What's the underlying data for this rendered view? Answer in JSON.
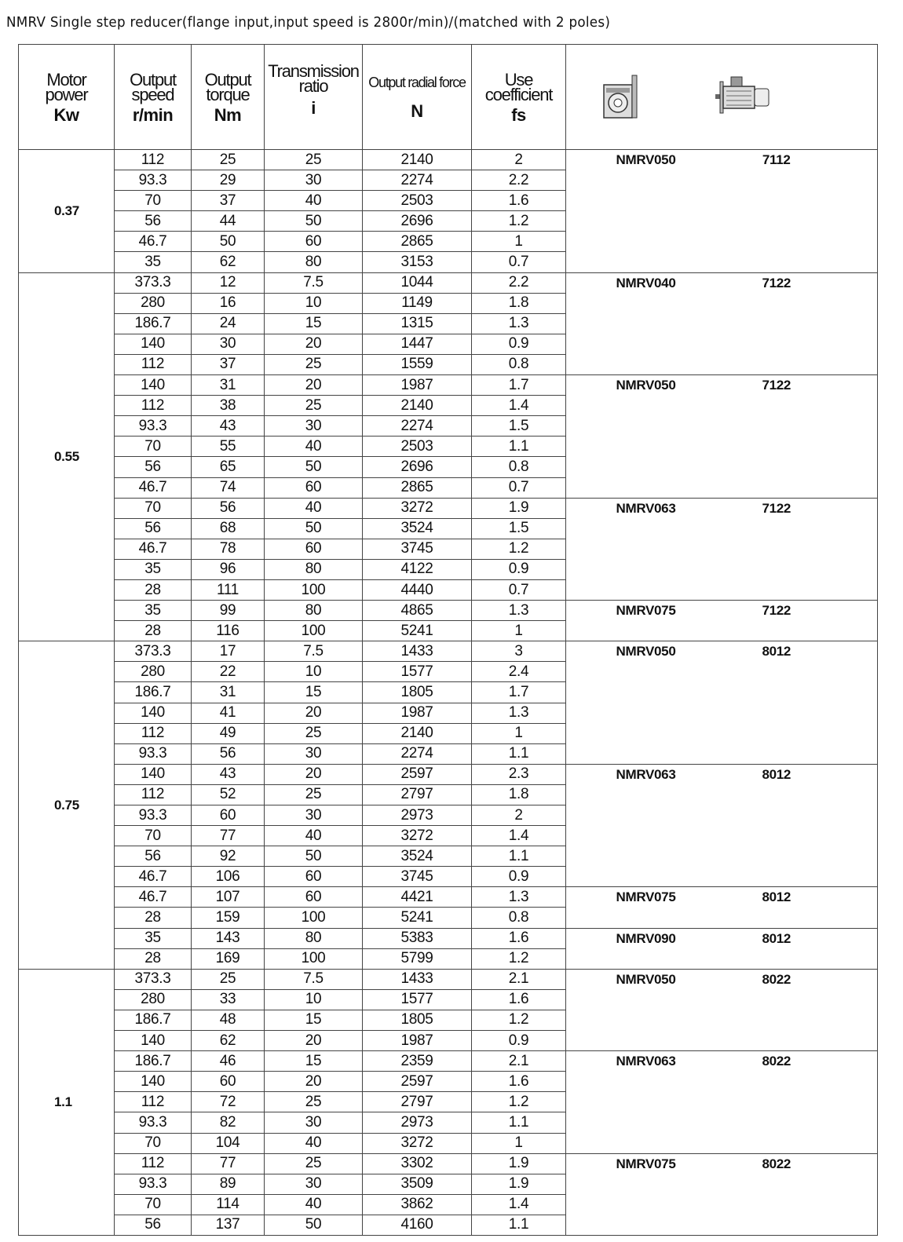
{
  "title": "NMRV Single step reducer(flange input,input speed is 2800r/min)/(matched with 2 poles)",
  "headers": {
    "power": [
      "Motor",
      "power"
    ],
    "power_unit": "Kw",
    "speed": [
      "Output",
      "speed"
    ],
    "speed_unit": "r/min",
    "torque": [
      "Output",
      "torque"
    ],
    "torque_unit": "Nm",
    "ratio": [
      "Transmission",
      "ratio"
    ],
    "ratio_unit": "i",
    "force": [
      "Output radial force"
    ],
    "force_unit": "N",
    "fs": [
      "Use",
      "coefficient"
    ],
    "fs_unit": "fs",
    "icons": [
      "worm-gear-reducer-icon",
      "electric-motor-icon"
    ]
  },
  "groups": [
    {
      "power": "0.37",
      "subgroups": [
        {
          "model": "NMRV050",
          "motor": "7112",
          "rows": [
            [
              "112",
              "25",
              "25",
              "2140",
              "2"
            ],
            [
              "93.3",
              "29",
              "30",
              "2274",
              "2.2"
            ],
            [
              "70",
              "37",
              "40",
              "2503",
              "1.6"
            ],
            [
              "56",
              "44",
              "50",
              "2696",
              "1.2"
            ],
            [
              "46.7",
              "50",
              "60",
              "2865",
              "1"
            ],
            [
              "35",
              "62",
              "80",
              "3153",
              "0.7"
            ]
          ]
        }
      ]
    },
    {
      "power": "0.55",
      "subgroups": [
        {
          "model": "NMRV040",
          "motor": "7122",
          "rows": [
            [
              "373.3",
              "12",
              "7.5",
              "1044",
              "2.2"
            ],
            [
              "280",
              "16",
              "10",
              "1149",
              "1.8"
            ],
            [
              "186.7",
              "24",
              "15",
              "1315",
              "1.3"
            ],
            [
              "140",
              "30",
              "20",
              "1447",
              "0.9"
            ],
            [
              "112",
              "37",
              "25",
              "1559",
              "0.8"
            ]
          ]
        },
        {
          "model": "NMRV050",
          "motor": "7122",
          "rows": [
            [
              "140",
              "31",
              "20",
              "1987",
              "1.7"
            ],
            [
              "112",
              "38",
              "25",
              "2140",
              "1.4"
            ],
            [
              "93.3",
              "43",
              "30",
              "2274",
              "1.5"
            ],
            [
              "70",
              "55",
              "40",
              "2503",
              "1.1"
            ],
            [
              "56",
              "65",
              "50",
              "2696",
              "0.8"
            ],
            [
              "46.7",
              "74",
              "60",
              "2865",
              "0.7"
            ]
          ]
        },
        {
          "model": "NMRV063",
          "motor": "7122",
          "rows": [
            [
              "70",
              "56",
              "40",
              "3272",
              "1.9"
            ],
            [
              "56",
              "68",
              "50",
              "3524",
              "1.5"
            ],
            [
              "46.7",
              "78",
              "60",
              "3745",
              "1.2"
            ],
            [
              "35",
              "96",
              "80",
              "4122",
              "0.9"
            ],
            [
              "28",
              "111",
              "100",
              "4440",
              "0.7"
            ]
          ]
        },
        {
          "model": "NMRV075",
          "motor": "7122",
          "rows": [
            [
              "35",
              "99",
              "80",
              "4865",
              "1.3"
            ],
            [
              "28",
              "116",
              "100",
              "5241",
              "1"
            ]
          ]
        }
      ]
    },
    {
      "power": "0.75",
      "subgroups": [
        {
          "model": "NMRV050",
          "motor": "8012",
          "rows": [
            [
              "373.3",
              "17",
              "7.5",
              "1433",
              "3"
            ],
            [
              "280",
              "22",
              "10",
              "1577",
              "2.4"
            ],
            [
              "186.7",
              "31",
              "15",
              "1805",
              "1.7"
            ],
            [
              "140",
              "41",
              "20",
              "1987",
              "1.3"
            ],
            [
              "112",
              "49",
              "25",
              "2140",
              "1"
            ],
            [
              "93.3",
              "56",
              "30",
              "2274",
              "1.1"
            ]
          ]
        },
        {
          "model": "NMRV063",
          "motor": "8012",
          "rows": [
            [
              "140",
              "43",
              "20",
              "2597",
              "2.3"
            ],
            [
              "112",
              "52",
              "25",
              "2797",
              "1.8"
            ],
            [
              "93.3",
              "60",
              "30",
              "2973",
              "2"
            ],
            [
              "70",
              "77",
              "40",
              "3272",
              "1.4"
            ],
            [
              "56",
              "92",
              "50",
              "3524",
              "1.1"
            ],
            [
              "46.7",
              "106",
              "60",
              "3745",
              "0.9"
            ]
          ]
        },
        {
          "model": "NMRV075",
          "motor": "8012",
          "rows": [
            [
              "46.7",
              "107",
              "60",
              "4421",
              "1.3"
            ],
            [
              "28",
              "159",
              "100",
              "5241",
              "0.8"
            ]
          ]
        },
        {
          "model": "NMRV090",
          "motor": "8012",
          "rows": [
            [
              "35",
              "143",
              "80",
              "5383",
              "1.6"
            ],
            [
              "28",
              "169",
              "100",
              "5799",
              "1.2"
            ]
          ]
        }
      ]
    },
    {
      "power": "1.1",
      "subgroups": [
        {
          "model": "NMRV050",
          "motor": "8022",
          "rows": [
            [
              "373.3",
              "25",
              "7.5",
              "1433",
              "2.1"
            ],
            [
              "280",
              "33",
              "10",
              "1577",
              "1.6"
            ],
            [
              "186.7",
              "48",
              "15",
              "1805",
              "1.2"
            ],
            [
              "140",
              "62",
              "20",
              "1987",
              "0.9"
            ]
          ]
        },
        {
          "model": "NMRV063",
          "motor": "8022",
          "rows": [
            [
              "186.7",
              "46",
              "15",
              "2359",
              "2.1"
            ],
            [
              "140",
              "60",
              "20",
              "2597",
              "1.6"
            ],
            [
              "112",
              "72",
              "25",
              "2797",
              "1.2"
            ],
            [
              "93.3",
              "82",
              "30",
              "2973",
              "1.1"
            ],
            [
              "70",
              "104",
              "40",
              "3272",
              "1"
            ]
          ]
        },
        {
          "model": "NMRV075",
          "motor": "8022",
          "rows": [
            [
              "112",
              "77",
              "25",
              "3302",
              "1.9"
            ],
            [
              "93.3",
              "89",
              "30",
              "3509",
              "1.9"
            ],
            [
              "70",
              "114",
              "40",
              "3862",
              "1.4"
            ],
            [
              "56",
              "137",
              "50",
              "4160",
              "1.1"
            ]
          ]
        }
      ]
    }
  ]
}
